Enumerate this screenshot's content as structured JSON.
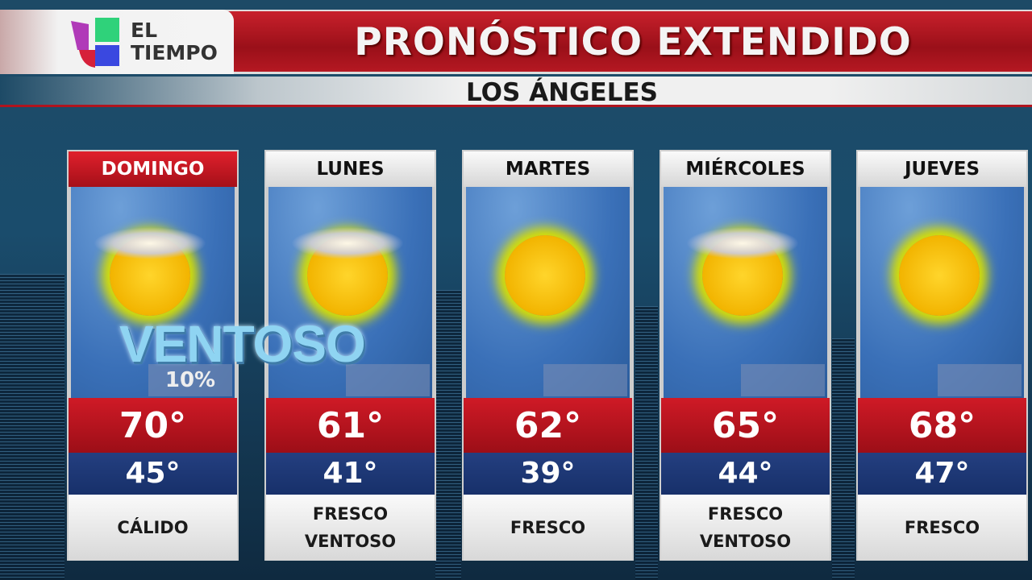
{
  "brand": {
    "logo_line1": "EL",
    "logo_line2": "TIEMPO"
  },
  "header": {
    "title": "PRONÓSTICO EXTENDIDO",
    "location": "LOS ÁNGELES"
  },
  "overlay": {
    "condition_label": "VENTOSO"
  },
  "colors": {
    "title_red": "#b51822",
    "high_red": "#c8202b",
    "low_blue": "#1d3775",
    "active_day": "#d81e2a"
  },
  "days": [
    {
      "day": "DOMINGO",
      "icon": "sun-clouds-icon",
      "precip": "10%",
      "high": "70°",
      "low": "45°",
      "desc": [
        "CÁLIDO"
      ],
      "active": true
    },
    {
      "day": "LUNES",
      "icon": "sun-clouds-icon",
      "precip": "",
      "high": "61°",
      "low": "41°",
      "desc": [
        "FRESCO",
        "VENTOSO"
      ]
    },
    {
      "day": "MARTES",
      "icon": "sun-icon",
      "precip": "",
      "high": "62°",
      "low": "39°",
      "desc": [
        "FRESCO"
      ]
    },
    {
      "day": "MIÉRCOLES",
      "icon": "sun-clouds-icon",
      "precip": "",
      "high": "65°",
      "low": "44°",
      "desc": [
        "FRESCO",
        "VENTOSO"
      ]
    },
    {
      "day": "JUEVES",
      "icon": "sun-icon",
      "precip": "",
      "high": "68°",
      "low": "47°",
      "desc": [
        "FRESCO"
      ]
    }
  ]
}
